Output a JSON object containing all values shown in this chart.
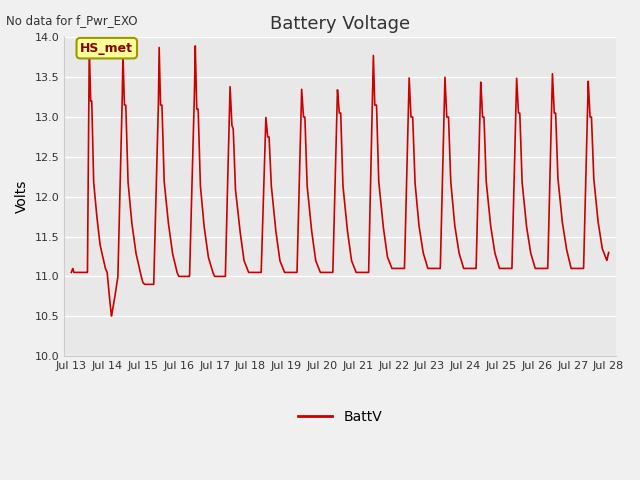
{
  "title": "Battery Voltage",
  "ylabel": "Volts",
  "top_left_text": "No data for f_Pwr_EXO",
  "legend_label": "BattV",
  "plot_bg_color": "#e8e8e8",
  "fig_bg_color": "#f0f0f0",
  "ylim": [
    10.0,
    14.0
  ],
  "yticks": [
    10.0,
    10.5,
    11.0,
    11.5,
    12.0,
    12.5,
    13.0,
    13.5,
    14.0
  ],
  "xtick_labels": [
    "Jul 13",
    "Jul 14",
    "Jul 15",
    "Jul 16",
    "Jul 17",
    "Jul 18",
    "Jul 19",
    "Jul 20",
    "Jul 21",
    "Jul 22",
    "Jul 23",
    "Jul 24",
    "Jul 25",
    "Jul 26",
    "Jul 27",
    "Jul 28"
  ],
  "line_color": "#cc0000",
  "line_width": 1.2,
  "hs_met_box_color": "#ffff99",
  "hs_met_text_color": "#880000",
  "hs_met_border_color": "#999900",
  "grid_color": "#ffffff",
  "grid_lw": 1.0
}
